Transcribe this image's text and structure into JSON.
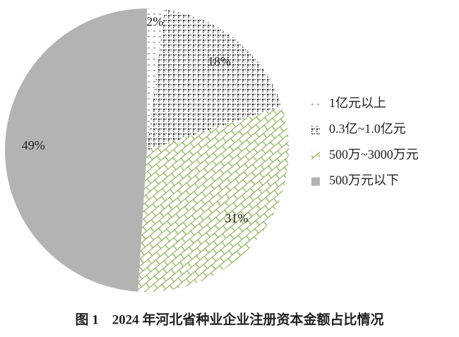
{
  "chart_data": {
    "type": "pie",
    "title": "图 1　2024 年河北省种业企业注册资本金额占比情况",
    "categories": [
      "1亿元以上",
      "0.3亿~1.0亿元",
      "500万~3000万元",
      "500万元以下"
    ],
    "values": [
      2,
      18,
      31,
      49
    ],
    "value_labels": [
      "2%",
      "18%",
      "31%",
      "49%"
    ],
    "colors": [
      "#666666",
      "#444444",
      "#8db356",
      "#b3b3b3"
    ],
    "legend": "right"
  }
}
